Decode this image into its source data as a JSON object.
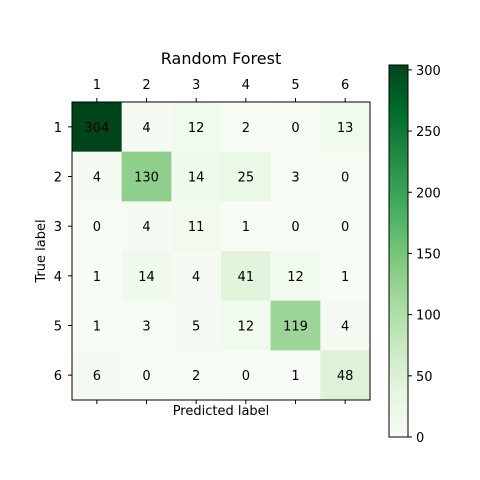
{
  "chart_data": {
    "type": "heatmap",
    "title": "Random Forest",
    "xlabel": "Predicted label",
    "ylabel": "True label",
    "x_categories": [
      "1",
      "2",
      "3",
      "4",
      "5",
      "6"
    ],
    "y_categories": [
      "1",
      "2",
      "3",
      "4",
      "5",
      "6"
    ],
    "values": [
      [
        304,
        4,
        12,
        2,
        0,
        13
      ],
      [
        4,
        130,
        14,
        25,
        3,
        0
      ],
      [
        0,
        4,
        11,
        1,
        0,
        0
      ],
      [
        1,
        14,
        4,
        41,
        12,
        1
      ],
      [
        1,
        3,
        5,
        12,
        119,
        4
      ],
      [
        6,
        0,
        2,
        0,
        1,
        48
      ]
    ],
    "colormap": "Greens",
    "colorbar": {
      "range": [
        0,
        304
      ],
      "ticks": [
        0,
        50,
        100,
        150,
        200,
        250,
        300
      ]
    },
    "x_tick_position": "top",
    "grid": false
  }
}
